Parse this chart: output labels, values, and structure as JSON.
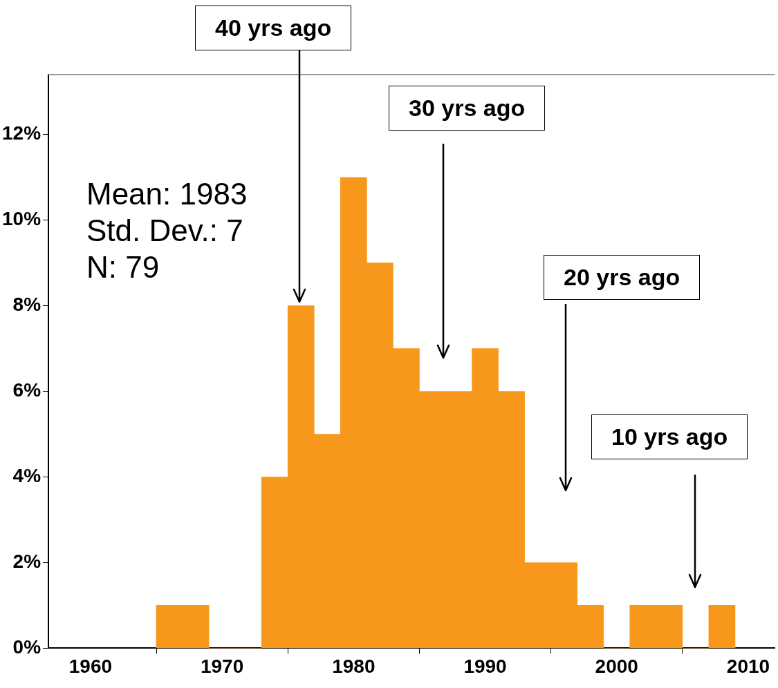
{
  "chart_data": {
    "type": "histogram",
    "bins": [
      1965,
      1967,
      1969,
      1971,
      1973,
      1975,
      1977,
      1979,
      1981,
      1983,
      1985,
      1987,
      1989,
      1991,
      1993,
      1995,
      1997,
      1999,
      2001,
      2003,
      2005,
      2007,
      2009
    ],
    "values": [
      1,
      1,
      0,
      0,
      4,
      8,
      5,
      11,
      9,
      7,
      6,
      6,
      7,
      6,
      2,
      2,
      1,
      0,
      1,
      1,
      0,
      1
    ],
    "color": "#f7981d",
    "xlim": [
      1956.8,
      2012
    ],
    "xticks": [
      1960,
      1970,
      1980,
      1990,
      2000,
      2010
    ],
    "ylim": [
      0,
      13.4
    ],
    "yticks": [
      {
        "value": 0,
        "label": "0%"
      },
      {
        "value": 2,
        "label": "2%"
      },
      {
        "value": 4,
        "label": "4%"
      },
      {
        "value": 6,
        "label": "6%"
      },
      {
        "value": 8,
        "label": "8%"
      },
      {
        "value": 10,
        "label": "10%"
      },
      {
        "value": 12,
        "label": "12%"
      }
    ],
    "grid": false,
    "annotations": [
      "40 yrs ago",
      "30 yrs ago",
      "20 yrs ago",
      "10 yrs ago",
      "Mean: 1983",
      "Std. Dev.: 7",
      "N: 79"
    ]
  }
}
